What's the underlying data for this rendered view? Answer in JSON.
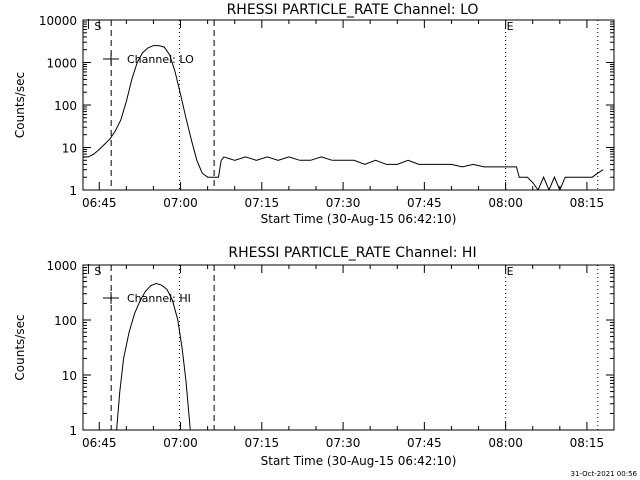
{
  "chart_data": [
    {
      "type": "line",
      "title": "RHESSI PARTICLE_RATE Channel: LO",
      "xlabel": "Start Time (30-Aug-15 06:42:10)",
      "ylabel": "Counts/sec",
      "yscale": "log",
      "ylim": [
        1,
        10000
      ],
      "xlim_minutes": [
        0,
        98
      ],
      "x_ticks": [
        {
          "min": 3,
          "label": "06:45"
        },
        {
          "min": 18,
          "label": "07:00"
        },
        {
          "min": 33,
          "label": "07:15"
        },
        {
          "min": 48,
          "label": "07:30"
        },
        {
          "min": 63,
          "label": "07:45"
        },
        {
          "min": 78,
          "label": "08:00"
        },
        {
          "min": 93,
          "label": "08:15"
        }
      ],
      "y_ticks": [
        {
          "value": 1,
          "label": "1"
        },
        {
          "value": 10,
          "label": "10"
        },
        {
          "value": 100,
          "label": "100"
        },
        {
          "value": 1000,
          "label": "1000"
        },
        {
          "value": 10000,
          "label": "10000"
        }
      ],
      "legend": "Channel: LO",
      "markers": {
        "start_label": "S",
        "end_label": "E",
        "start_min": 1.0,
        "end_min": 78.0
      },
      "vlines": [
        {
          "min": 5.2,
          "style": "dashed"
        },
        {
          "min": 17.8,
          "style": "dotted"
        },
        {
          "min": 24.2,
          "style": "dashed"
        },
        {
          "min": 78.0,
          "style": "dotted"
        },
        {
          "min": 95.0,
          "style": "dotted"
        }
      ],
      "series": [
        {
          "name": "Channel: LO",
          "points": [
            [
              0,
              6
            ],
            [
              1,
              6
            ],
            [
              2,
              7
            ],
            [
              3,
              9
            ],
            [
              4,
              12
            ],
            [
              5,
              16
            ],
            [
              6,
              25
            ],
            [
              7,
              45
            ],
            [
              8,
              120
            ],
            [
              9,
              400
            ],
            [
              10,
              1000
            ],
            [
              11,
              1700
            ],
            [
              12,
              2200
            ],
            [
              13,
              2500
            ],
            [
              14,
              2500
            ],
            [
              15,
              2300
            ],
            [
              16,
              1500
            ],
            [
              17,
              600
            ],
            [
              18,
              180
            ],
            [
              19,
              50
            ],
            [
              20,
              15
            ],
            [
              21,
              5
            ],
            [
              22,
              2.5
            ],
            [
              23,
              2
            ],
            [
              24,
              2
            ],
            [
              25,
              2
            ],
            [
              25.5,
              5
            ],
            [
              26,
              6
            ],
            [
              28,
              5
            ],
            [
              30,
              6
            ],
            [
              32,
              5
            ],
            [
              34,
              6
            ],
            [
              36,
              5
            ],
            [
              38,
              6
            ],
            [
              40,
              5
            ],
            [
              42,
              5
            ],
            [
              44,
              6
            ],
            [
              46,
              5
            ],
            [
              48,
              5
            ],
            [
              50,
              5
            ],
            [
              52,
              4
            ],
            [
              54,
              5
            ],
            [
              56,
              4
            ],
            [
              58,
              4
            ],
            [
              60,
              5
            ],
            [
              62,
              4
            ],
            [
              64,
              4
            ],
            [
              66,
              4
            ],
            [
              68,
              4
            ],
            [
              70,
              3.5
            ],
            [
              72,
              4
            ],
            [
              74,
              3.5
            ],
            [
              76,
              3.5
            ],
            [
              78,
              3.5
            ],
            [
              80,
              3.5
            ],
            [
              80.5,
              2
            ],
            [
              82,
              2
            ],
            [
              83,
              1.5
            ],
            [
              84,
              1
            ],
            [
              85,
              2
            ],
            [
              86,
              1
            ],
            [
              87,
              2
            ],
            [
              88,
              1
            ],
            [
              89,
              2
            ],
            [
              90,
              2
            ],
            [
              92,
              2
            ],
            [
              94,
              2
            ],
            [
              95,
              2.5
            ],
            [
              96,
              3
            ]
          ]
        }
      ]
    },
    {
      "type": "line",
      "title": "RHESSI PARTICLE_RATE Channel: HI",
      "xlabel": "Start Time (30-Aug-15 06:42:10)",
      "ylabel": "Counts/sec",
      "yscale": "log",
      "ylim": [
        1,
        1000
      ],
      "xlim_minutes": [
        0,
        98
      ],
      "x_ticks": [
        {
          "min": 3,
          "label": "06:45"
        },
        {
          "min": 18,
          "label": "07:00"
        },
        {
          "min": 33,
          "label": "07:15"
        },
        {
          "min": 48,
          "label": "07:30"
        },
        {
          "min": 63,
          "label": "07:45"
        },
        {
          "min": 78,
          "label": "08:00"
        },
        {
          "min": 93,
          "label": "08:15"
        }
      ],
      "y_ticks": [
        {
          "value": 1,
          "label": "1"
        },
        {
          "value": 10,
          "label": "10"
        },
        {
          "value": 100,
          "label": "100"
        },
        {
          "value": 1000,
          "label": "1000"
        }
      ],
      "legend": "Channel: HI",
      "markers": {
        "start_label": "S",
        "end_label": "E",
        "start_min": 1.0,
        "end_min": 78.0
      },
      "vlines": [
        {
          "min": 5.2,
          "style": "dashed"
        },
        {
          "min": 17.8,
          "style": "dotted"
        },
        {
          "min": 24.2,
          "style": "dashed"
        },
        {
          "min": 78.0,
          "style": "dotted"
        },
        {
          "min": 95.0,
          "style": "dotted"
        }
      ],
      "series": [
        {
          "name": "Channel: HI",
          "points": [
            [
              6.2,
              1
            ],
            [
              6.8,
              5
            ],
            [
              7.5,
              20
            ],
            [
              8.5,
              60
            ],
            [
              9.5,
              130
            ],
            [
              10.5,
              220
            ],
            [
              11.5,
              330
            ],
            [
              12.5,
              420
            ],
            [
              13.5,
              460
            ],
            [
              14.5,
              430
            ],
            [
              15.5,
              360
            ],
            [
              16.5,
              230
            ],
            [
              17.5,
              100
            ],
            [
              18.3,
              30
            ],
            [
              19,
              8
            ],
            [
              19.8,
              1
            ]
          ]
        }
      ]
    }
  ],
  "footer": {
    "timestamp": "31-Oct-2021 00:56"
  }
}
